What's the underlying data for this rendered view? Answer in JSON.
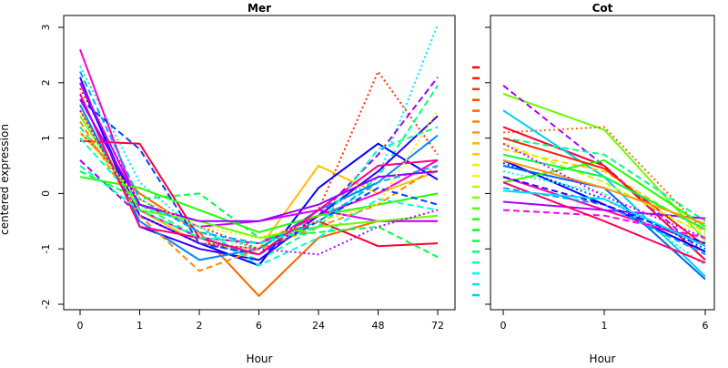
{
  "chart_data": {
    "type": "line",
    "ylabel": "centered expression",
    "ylim": [
      -2,
      3
    ],
    "y_ticks": [
      -2,
      -1,
      0,
      1,
      2,
      3
    ],
    "grid": false,
    "legend": "color key strip, left of right panel",
    "panels": [
      {
        "id": "mer",
        "title": "Mer",
        "xlabel": "Hour",
        "categories": [
          "0",
          "1",
          "2",
          "6",
          "24",
          "48",
          "72"
        ],
        "series": [
          {
            "color": "#ff2a00",
            "dash": "dot",
            "values": [
              1.9,
              -0.1,
              -0.6,
              -1.0,
              -0.3,
              2.2,
              0.7
            ]
          },
          {
            "color": "#00e5ff",
            "dash": "dot",
            "values": [
              2.3,
              0.2,
              -0.7,
              -1.0,
              -0.4,
              0.3,
              3.05
            ]
          },
          {
            "color": "#a000ff",
            "dash": "dash",
            "values": [
              0.6,
              -0.4,
              -0.9,
              -1.1,
              -0.4,
              0.7,
              2.1
            ]
          },
          {
            "color": "#00ff80",
            "dash": "dash",
            "values": [
              1.2,
              -0.2,
              -0.8,
              -1.2,
              -0.6,
              0.3,
              1.95
            ]
          },
          {
            "color": "#ff6600",
            "dash": "solid",
            "values": [
              1.1,
              0.0,
              -0.7,
              -1.85,
              -0.8,
              -0.5,
              -0.5
            ]
          },
          {
            "color": "#ffbf00",
            "dash": "solid",
            "values": [
              1.5,
              -0.3,
              -0.9,
              -1.0,
              0.5,
              0.0,
              0.4
            ]
          },
          {
            "color": "#0000ff",
            "dash": "solid",
            "values": [
              2.0,
              -0.4,
              -0.9,
              -1.3,
              0.1,
              0.9,
              0.25
            ]
          },
          {
            "color": "#3300ff",
            "dash": "solid",
            "values": [
              2.1,
              -0.6,
              -1.0,
              -1.2,
              -0.4,
              0.4,
              1.4
            ]
          },
          {
            "color": "#0088ff",
            "dash": "solid",
            "values": [
              1.6,
              -0.5,
              -1.2,
              -1.0,
              -0.3,
              0.2,
              1.05
            ]
          },
          {
            "color": "#ff0033",
            "dash": "solid",
            "values": [
              0.95,
              0.9,
              -0.8,
              -0.9,
              -0.5,
              -0.95,
              -0.9
            ]
          },
          {
            "color": "#ff00cc",
            "dash": "solid",
            "values": [
              2.6,
              -0.3,
              -0.8,
              -0.9,
              -0.4,
              0.0,
              0.6
            ]
          },
          {
            "color": "#cc00ff",
            "dash": "solid",
            "values": [
              2.0,
              -0.2,
              -0.6,
              -0.5,
              -0.3,
              -0.5,
              -0.5
            ]
          },
          {
            "color": "#00ff40",
            "dash": "dash",
            "values": [
              0.4,
              -0.1,
              0.0,
              -0.8,
              -0.7,
              -0.6,
              -1.15
            ]
          },
          {
            "color": "#22ff00",
            "dash": "solid",
            "values": [
              0.3,
              0.1,
              -0.3,
              -0.7,
              -0.4,
              -0.2,
              0.0
            ]
          },
          {
            "color": "#ff8800",
            "dash": "dash",
            "values": [
              1.3,
              -0.4,
              -1.4,
              -1.0,
              -0.6,
              -0.2,
              0.5
            ]
          },
          {
            "color": "#00ffcc",
            "dash": "dash",
            "values": [
              1.0,
              -0.2,
              -0.6,
              -1.3,
              -0.8,
              -0.1,
              -0.3
            ]
          },
          {
            "color": "#66ff00",
            "dash": "solid",
            "values": [
              1.4,
              -0.3,
              -0.5,
              -0.8,
              -0.6,
              -0.5,
              -0.4
            ]
          },
          {
            "color": "#0044ff",
            "dash": "dash",
            "values": [
              1.7,
              0.8,
              -0.9,
              -1.1,
              -0.5,
              0.1,
              -0.2
            ]
          },
          {
            "color": "#bb00ff",
            "dash": "dot",
            "values": [
              1.5,
              -0.4,
              -0.9,
              -1.0,
              -1.1,
              -0.6,
              -0.3
            ]
          },
          {
            "color": "#00aaff",
            "dash": "dash",
            "values": [
              2.2,
              -0.1,
              -0.7,
              -0.9,
              -0.5,
              0.2,
              0.5
            ]
          },
          {
            "color": "#ff0088",
            "dash": "solid",
            "values": [
              1.8,
              -0.6,
              -0.8,
              -1.1,
              -0.3,
              0.5,
              0.6
            ]
          },
          {
            "color": "#00ffaa",
            "dash": "dash",
            "values": [
              0.5,
              -0.3,
              -0.8,
              -0.9,
              -0.6,
              0.8,
              1.2
            ]
          },
          {
            "color": "#9900ff",
            "dash": "solid",
            "values": [
              1.7,
              -0.2,
              -0.5,
              -0.5,
              -0.2,
              0.3,
              0.4
            ]
          },
          {
            "color": "#ffee00",
            "dash": "dot",
            "values": [
              1.1,
              -0.1,
              -0.6,
              -0.8,
              -0.5,
              -0.2,
              1.5
            ]
          }
        ]
      },
      {
        "id": "cot",
        "title": "Cot",
        "xlabel": "Hour",
        "categories": [
          "0",
          "1",
          "6"
        ],
        "series": [
          {
            "color": "#66ff00",
            "dash": "solid",
            "values": [
              1.8,
              1.15,
              -0.85
            ]
          },
          {
            "color": "#aa00ff",
            "dash": "dash",
            "values": [
              1.95,
              0.5,
              -1.1
            ]
          },
          {
            "color": "#ff6600",
            "dash": "dot",
            "values": [
              1.1,
              1.2,
              -0.7
            ]
          },
          {
            "color": "#ff0033",
            "dash": "solid",
            "values": [
              1.2,
              0.5,
              -1.2
            ]
          },
          {
            "color": "#00ccff",
            "dash": "solid",
            "values": [
              1.5,
              0.3,
              -1.5
            ]
          },
          {
            "color": "#0000ff",
            "dash": "solid",
            "values": [
              0.6,
              -0.2,
              -1.05
            ]
          },
          {
            "color": "#0066ff",
            "dash": "solid",
            "values": [
              0.5,
              0.1,
              -1.55
            ]
          },
          {
            "color": "#00ff88",
            "dash": "dash",
            "values": [
              1.0,
              0.7,
              -0.5
            ]
          },
          {
            "color": "#ff00aa",
            "dash": "solid",
            "values": [
              0.3,
              -0.3,
              -0.9
            ]
          },
          {
            "color": "#ffcc00",
            "dash": "dash",
            "values": [
              0.8,
              0.4,
              -0.7
            ]
          },
          {
            "color": "#00ffcc",
            "dash": "dot",
            "values": [
              0.4,
              0.0,
              -1.3
            ]
          },
          {
            "color": "#aa00ff",
            "dash": "solid",
            "values": [
              -0.15,
              -0.3,
              -0.45
            ]
          },
          {
            "color": "#ff00ff",
            "dash": "dash",
            "values": [
              -0.3,
              -0.4,
              -0.8
            ]
          },
          {
            "color": "#22ff00",
            "dash": "solid",
            "values": [
              0.2,
              0.6,
              -0.6
            ]
          },
          {
            "color": "#0044ff",
            "dash": "dot",
            "values": [
              0.55,
              -0.1,
              -1.0
            ]
          },
          {
            "color": "#ff2200",
            "dash": "solid",
            "values": [
              1.0,
              0.45,
              -0.95
            ]
          },
          {
            "color": "#00aaff",
            "dash": "dash",
            "values": [
              0.1,
              -0.2,
              -1.1
            ]
          },
          {
            "color": "#ccff00",
            "dash": "dash",
            "values": [
              0.9,
              0.2,
              -0.75
            ]
          },
          {
            "color": "#ff0066",
            "dash": "solid",
            "values": [
              0.2,
              -0.5,
              -1.25
            ]
          },
          {
            "color": "#00ff44",
            "dash": "solid",
            "values": [
              0.7,
              0.3,
              -0.65
            ]
          },
          {
            "color": "#3300ff",
            "dash": "dash",
            "values": [
              0.3,
              -0.2,
              -0.9
            ]
          },
          {
            "color": "#ff9900",
            "dash": "solid",
            "values": [
              0.6,
              0.1,
              -0.55
            ]
          },
          {
            "color": "#00ddff",
            "dash": "solid",
            "values": [
              0.05,
              -0.1,
              -0.95
            ]
          },
          {
            "color": "#cc00ff",
            "dash": "dot",
            "values": [
              0.9,
              -0.05,
              -0.8
            ]
          }
        ]
      }
    ],
    "color_key": [
      "#ff0000",
      "#ff1a00",
      "#ff3300",
      "#ff4d00",
      "#ff6600",
      "#ff8000",
      "#ff9900",
      "#ffb300",
      "#ffcc00",
      "#ffe600",
      "#e6ff00",
      "#b3ff00",
      "#80ff00",
      "#4dff00",
      "#1aff00",
      "#00ff1a",
      "#00ff4d",
      "#00ff80",
      "#00ffb3",
      "#00ffe6",
      "#00e6ff",
      "#00ccff"
    ]
  }
}
